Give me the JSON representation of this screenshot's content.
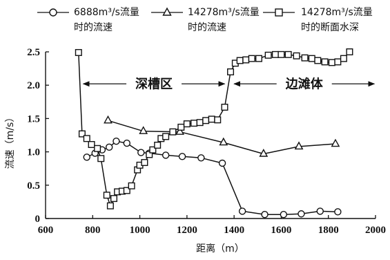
{
  "chart_data": {
    "type": "line",
    "xlabel": "距离（m）",
    "ylabel": "流速（m/s）",
    "xlim": [
      600,
      2000
    ],
    "ylim": [
      0,
      2.5
    ],
    "x_ticks": [
      "600",
      "800",
      "1000",
      "1200",
      "1400",
      "1600",
      "1800",
      "2000"
    ],
    "y_ticks": [
      "0",
      "0.5",
      "1.0",
      "1.5",
      "2.0",
      "2.5"
    ],
    "legend_placement": "top",
    "region_labels": [
      {
        "text": "深槽区",
        "from": 760,
        "to": 1360,
        "y": 2.02
      },
      {
        "text": "边滩体",
        "from": 1400,
        "to": 1995,
        "y": 2.02
      }
    ],
    "series": [
      {
        "name": "6888m³/s流量时的流速",
        "marker": "circle",
        "points": [
          [
            775,
            0.92
          ],
          [
            810,
            0.98
          ],
          [
            840,
            1.03
          ],
          [
            870,
            1.07
          ],
          [
            900,
            1.16
          ],
          [
            945,
            1.13
          ],
          [
            1005,
            0.99
          ],
          [
            1040,
            0.98
          ],
          [
            1110,
            0.95
          ],
          [
            1180,
            0.93
          ],
          [
            1260,
            0.91
          ],
          [
            1350,
            0.83
          ],
          [
            1435,
            0.11
          ],
          [
            1530,
            0.06
          ],
          [
            1610,
            0.06
          ],
          [
            1685,
            0.07
          ],
          [
            1765,
            0.11
          ],
          [
            1840,
            0.1
          ]
        ]
      },
      {
        "name": "14278m³/s流量时的流速",
        "marker": "triangle",
        "points": [
          [
            865,
            1.47
          ],
          [
            1015,
            1.31
          ],
          [
            1170,
            1.3
          ],
          [
            1355,
            1.14
          ],
          [
            1525,
            0.97
          ],
          [
            1675,
            1.08
          ],
          [
            1830,
            1.12
          ]
        ]
      },
      {
        "name": "14278m³/s流量时的断面水深",
        "marker": "square",
        "points": [
          [
            740,
            2.49
          ],
          [
            755,
            1.27
          ],
          [
            775,
            1.2
          ],
          [
            795,
            1.11
          ],
          [
            820,
            1.05
          ],
          [
            835,
            0.9
          ],
          [
            860,
            0.35
          ],
          [
            875,
            0.19
          ],
          [
            890,
            0.3
          ],
          [
            905,
            0.4
          ],
          [
            925,
            0.41
          ],
          [
            945,
            0.42
          ],
          [
            965,
            0.49
          ],
          [
            990,
            0.73
          ],
          [
            1000,
            0.8
          ],
          [
            1020,
            0.84
          ],
          [
            1040,
            0.96
          ],
          [
            1055,
            1.03
          ],
          [
            1075,
            1.1
          ],
          [
            1090,
            1.2
          ],
          [
            1110,
            1.23
          ],
          [
            1140,
            1.3
          ],
          [
            1175,
            1.37
          ],
          [
            1200,
            1.42
          ],
          [
            1230,
            1.43
          ],
          [
            1255,
            1.44
          ],
          [
            1280,
            1.47
          ],
          [
            1305,
            1.49
          ],
          [
            1330,
            1.48
          ],
          [
            1360,
            1.67
          ],
          [
            1385,
            2.2
          ],
          [
            1405,
            2.33
          ],
          [
            1425,
            2.37
          ],
          [
            1450,
            2.38
          ],
          [
            1475,
            2.4
          ],
          [
            1505,
            2.4
          ],
          [
            1545,
            2.45
          ],
          [
            1575,
            2.46
          ],
          [
            1600,
            2.46
          ],
          [
            1630,
            2.46
          ],
          [
            1665,
            2.44
          ],
          [
            1700,
            2.41
          ],
          [
            1730,
            2.4
          ],
          [
            1755,
            2.37
          ],
          [
            1785,
            2.35
          ],
          [
            1815,
            2.34
          ],
          [
            1840,
            2.35
          ],
          [
            1865,
            2.4
          ],
          [
            1890,
            2.5
          ]
        ]
      }
    ]
  }
}
